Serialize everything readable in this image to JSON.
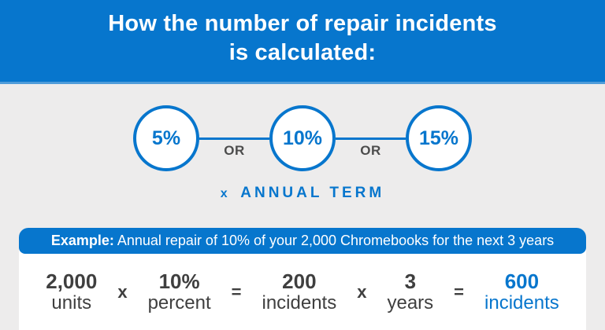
{
  "header": {
    "title_line1": "How the number of repair incidents",
    "title_line2": "is calculated:"
  },
  "options": {
    "circles": [
      {
        "label": "5%"
      },
      {
        "label": "10%"
      },
      {
        "label": "15%"
      }
    ],
    "connector_label": "OR",
    "multiplier_prefix": "x",
    "multiplier_label": "ANNUAL TERM"
  },
  "example": {
    "banner_bold": "Example:",
    "banner_rest": " Annual repair of 10% of your 2,000 Chromebooks for the next 3 years",
    "calculation": [
      {
        "value": "2,000",
        "label": "units"
      },
      {
        "symbol": "x"
      },
      {
        "value": "10%",
        "label": "percent"
      },
      {
        "symbol": "="
      },
      {
        "value": "200",
        "label": "incidents"
      },
      {
        "symbol": "x"
      },
      {
        "value": "3",
        "label": "years"
      },
      {
        "symbol": "="
      },
      {
        "value": "600",
        "label": "incidents",
        "highlight": true
      }
    ]
  },
  "colors": {
    "brand_blue": "#0776CD",
    "header_bottom_line": "#4F9CD9",
    "background_gray": "#EDECEC",
    "dark_text": "#3F3F3F",
    "or_text": "#4C4C4C",
    "white": "#FFFFFF"
  }
}
